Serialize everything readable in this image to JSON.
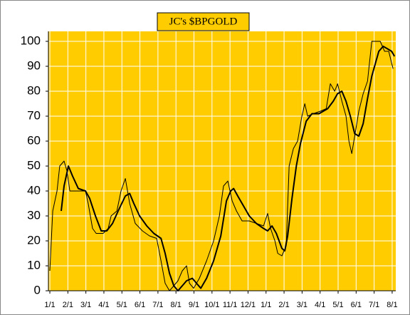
{
  "chart_data": {
    "type": "line",
    "title": "JC's $BPGOLD",
    "xlim": [
      -0.08,
      19.2
    ],
    "ylim": [
      0,
      104
    ],
    "yticks": [
      0,
      10,
      20,
      30,
      40,
      50,
      60,
      70,
      80,
      90,
      100
    ],
    "xticks": [
      {
        "value": 0,
        "label": "1/1"
      },
      {
        "value": 1,
        "label": "2/1"
      },
      {
        "value": 2,
        "label": "3/1"
      },
      {
        "value": 3,
        "label": "4/1"
      },
      {
        "value": 4,
        "label": "5/1"
      },
      {
        "value": 5,
        "label": "6/1"
      },
      {
        "value": 6,
        "label": "7/1"
      },
      {
        "value": 7,
        "label": "8/1"
      },
      {
        "value": 8,
        "label": "9/1"
      },
      {
        "value": 9,
        "label": "10/1"
      },
      {
        "value": 10,
        "label": "11/1"
      },
      {
        "value": 11,
        "label": "12/1"
      },
      {
        "value": 12,
        "label": "1/1"
      },
      {
        "value": 13,
        "label": "2/1"
      },
      {
        "value": 14,
        "label": "3/1"
      },
      {
        "value": 15,
        "label": "4/1"
      },
      {
        "value": 16,
        "label": "5/1"
      },
      {
        "value": 17,
        "label": "6/1"
      },
      {
        "value": 18,
        "label": "7/1"
      },
      {
        "value": 19,
        "label": "8/1"
      }
    ],
    "grid": true,
    "background": "#ffcc00",
    "series": [
      {
        "color": "#000000",
        "width": 1,
        "x": [
          0,
          0.16,
          0.4,
          0.55,
          0.79,
          0.95,
          1.11,
          1.58,
          1.98,
          2.13,
          2.37,
          2.57,
          2.96,
          3.24,
          3.4,
          3.72,
          3.95,
          4.19,
          4.43,
          4.74,
          5.14,
          5.53,
          5.93,
          6.17,
          6.4,
          6.64,
          6.88,
          7.11,
          7.35,
          7.59,
          7.75,
          7.98,
          8.3,
          8.7,
          9.09,
          9.41,
          9.64,
          9.88,
          10.12,
          10.36,
          10.67,
          11.07,
          11.46,
          11.86,
          12.09,
          12.25,
          12.49,
          12.65,
          12.88,
          13.12,
          13.28,
          13.52,
          13.75,
          13.99,
          14.15,
          14.31,
          14.62,
          15.02,
          15.34,
          15.57,
          15.81,
          15.97,
          16.21,
          16.44,
          16.6,
          16.76,
          16.92,
          17.15,
          17.39,
          17.63,
          17.87,
          18.1,
          18.34,
          18.58,
          18.81,
          19.05
        ],
        "values": [
          8,
          32,
          40,
          50,
          52,
          48,
          40,
          40,
          40,
          35,
          25,
          23,
          23,
          25,
          30,
          32,
          40,
          45,
          35,
          27,
          24,
          22,
          21,
          12,
          3,
          0,
          2,
          4,
          8,
          10,
          3,
          1,
          5,
          12,
          20,
          30,
          42,
          44,
          36,
          32,
          28,
          28,
          27,
          26,
          31,
          25,
          20,
          15,
          14,
          18,
          50,
          57,
          60,
          70,
          75,
          70,
          71,
          72,
          73,
          83,
          80,
          83,
          76,
          70,
          60,
          55,
          62,
          72,
          79,
          84,
          100,
          100,
          100,
          96,
          96,
          89
        ]
      },
      {
        "color": "#000000",
        "width": 2,
        "x": [
          0.63,
          0.79,
          1.03,
          1.26,
          1.58,
          1.98,
          2.21,
          2.53,
          2.85,
          3.16,
          3.48,
          3.79,
          4.19,
          4.43,
          4.66,
          4.98,
          5.38,
          5.77,
          6.17,
          6.4,
          6.64,
          6.88,
          7.11,
          7.35,
          7.59,
          7.91,
          8.14,
          8.38,
          8.7,
          9.09,
          9.49,
          9.8,
          10.04,
          10.2,
          10.43,
          10.75,
          11.07,
          11.46,
          11.86,
          12.09,
          12.33,
          12.57,
          12.88,
          13.04,
          13.2,
          13.44,
          13.68,
          13.91,
          14.23,
          14.55,
          14.94,
          15.42,
          15.73,
          15.97,
          16.21,
          16.44,
          16.68,
          16.92,
          17.15,
          17.39,
          17.63,
          17.87,
          18.1,
          18.26,
          18.5,
          18.74,
          18.97,
          19.13
        ],
        "values": [
          32,
          42,
          50,
          46,
          41,
          40,
          37,
          30,
          24,
          24,
          27,
          32,
          38,
          39,
          35,
          30,
          26,
          23,
          21,
          15,
          7,
          2,
          0,
          2,
          4,
          5,
          3,
          1,
          5,
          12,
          22,
          36,
          40,
          41,
          38,
          34,
          30,
          27,
          25,
          24,
          26,
          23,
          17,
          16,
          22,
          37,
          50,
          59,
          68,
          71,
          71,
          73,
          76,
          79,
          80,
          76,
          70,
          63,
          62,
          67,
          77,
          86,
          92,
          96,
          98,
          97,
          96,
          94
        ]
      }
    ]
  }
}
